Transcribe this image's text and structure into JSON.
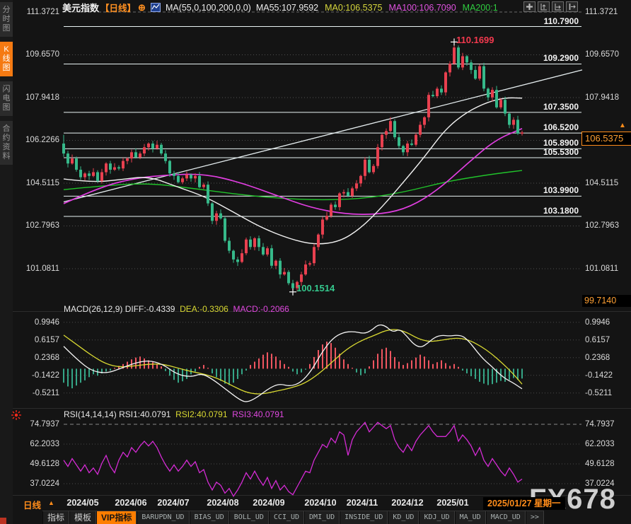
{
  "sidebar": {
    "items": [
      {
        "label": "分时图",
        "active": false
      },
      {
        "label": "K线图",
        "active": true
      },
      {
        "label": "闪电图",
        "active": false
      },
      {
        "label": "合约资料",
        "active": false
      }
    ]
  },
  "header": {
    "symbol": "美元指数",
    "period_tag": "【日线】",
    "add_icon": "⊕",
    "ma_settings": "MA(55,0,100,200,0,0)",
    "ma_values": [
      {
        "text": "MA55:107.9592",
        "color": "#ececec"
      },
      {
        "text": "MA0:106.5375",
        "color": "#d6d63c"
      },
      {
        "text": "MA100:106.7090",
        "color": "#e052e0"
      },
      {
        "text": "MA200:1",
        "color": "#2fcc3f"
      }
    ]
  },
  "watermark": "FX678",
  "bottom": {
    "period_label": "日线",
    "period_arrow": "▲",
    "dates": [
      "2024/05",
      "2024/06",
      "2024/07",
      "2024/08",
      "2024/09",
      "2024/10",
      "2024/11",
      "2024/12",
      "2025/01"
    ],
    "current_date": "2025/01/27 星期一",
    "tabs": [
      {
        "label": "指标",
        "style": "cjk"
      },
      {
        "label": "模板",
        "style": "cjk"
      },
      {
        "label": "VIP指标",
        "style": "vip"
      },
      {
        "label": "BARUPDN_UD",
        "style": "mono"
      },
      {
        "label": "BIAS_UD",
        "style": "mono"
      },
      {
        "label": "BOLL_UD",
        "style": "mono"
      },
      {
        "label": "CCI_UD",
        "style": "mono"
      },
      {
        "label": "DMI_UD",
        "style": "mono"
      },
      {
        "label": "INSIDE_UD",
        "style": "mono"
      },
      {
        "label": "KD_UD",
        "style": "mono"
      },
      {
        "label": "KDJ_UD",
        "style": "mono"
      },
      {
        "label": "MA_UD",
        "style": "mono"
      },
      {
        "label": "MACD_UD",
        "style": "mono"
      },
      {
        "label": ">>",
        "style": "mono"
      }
    ]
  },
  "chart_data": {
    "type": "bar",
    "subtype": "candlestick-with-macd-rsi",
    "title": "美元指数 日线",
    "main": {
      "axis_labels": [
        "111.3721",
        "109.6570",
        "107.9418",
        "106.2266",
        "104.5115",
        "102.7963",
        "101.0811"
      ],
      "levels": [
        "110.7900",
        "109.2900",
        "107.3500",
        "106.5200",
        "105.8900",
        "105.5300",
        "103.9900",
        "103.1800"
      ],
      "current_price": "106.5375",
      "session_low_label": "99.7140",
      "high_annotation": "110.1699",
      "low_annotation": "100.1514",
      "first_open": 106.1,
      "closes": [
        105.7,
        105.3,
        105.5,
        105.05,
        104.75,
        104.9,
        104.8,
        104.95,
        104.6,
        104.95,
        105.3,
        105.05,
        105.15,
        105.1,
        105.4,
        105.5,
        105.75,
        105.55,
        105.7,
        105.95,
        106.1,
        105.9,
        106.05,
        105.7,
        105.4,
        104.9,
        104.8,
        104.55,
        104.7,
        104.85,
        104.7,
        104.8,
        104.35,
        104.45,
        103.7,
        103.0,
        103.3,
        103.1,
        102.2,
        101.8,
        101.45,
        101.35,
        101.7,
        102.25,
        101.95,
        102.3,
        101.95,
        101.65,
        101.9,
        101.2,
        101.4,
        100.85,
        100.95,
        100.5,
        100.3,
        100.55,
        100.85,
        101.25,
        101.3,
        101.95,
        102.45,
        103.05,
        103.2,
        103.65,
        103.55,
        104.1,
        104.15,
        104.0,
        104.3,
        104.5,
        104.8,
        105.45,
        104.95,
        105.2,
        105.95,
        106.45,
        106.6,
        107.0,
        106.35,
        106.0,
        105.75,
        106.1,
        106.05,
        106.45,
        106.85,
        107.15,
        108.05,
        108.0,
        108.3,
        108.15,
        108.95,
        109.3,
        109.95,
        109.15,
        109.6,
        109.35,
        109.05,
        108.7,
        109.2,
        108.3,
        107.95,
        108.25,
        107.55,
        107.85,
        107.3,
        106.85,
        107.05,
        106.5,
        106.54
      ],
      "special": {
        "high_index": 92,
        "high_value": 110.1699,
        "low_index": 54,
        "low_value": 100.1514,
        "first_high": 106.45
      },
      "ma55": [
        [
          90,
          104.68
        ],
        [
          130,
          104.54
        ],
        [
          170,
          104.65
        ],
        [
          210,
          104.79
        ],
        [
          250,
          104.37
        ],
        [
          290,
          103.97
        ],
        [
          330,
          103.35
        ],
        [
          370,
          102.72
        ],
        [
          410,
          102.27
        ],
        [
          445,
          102.04
        ],
        [
          480,
          102.16
        ],
        [
          510,
          102.7
        ],
        [
          540,
          103.55
        ],
        [
          570,
          104.54
        ],
        [
          600,
          105.56
        ],
        [
          630,
          106.69
        ],
        [
          660,
          107.37
        ],
        [
          690,
          107.77
        ],
        [
          715,
          107.94
        ],
        [
          738,
          107.92
        ]
      ],
      "ma100": [
        [
          90,
          103.69
        ],
        [
          140,
          104.34
        ],
        [
          190,
          104.71
        ],
        [
          240,
          104.85
        ],
        [
          290,
          104.88
        ],
        [
          340,
          104.54
        ],
        [
          390,
          104.03
        ],
        [
          440,
          103.52
        ],
        [
          490,
          103.26
        ],
        [
          540,
          103.26
        ],
        [
          580,
          103.55
        ],
        [
          620,
          104.26
        ],
        [
          660,
          105.28
        ],
        [
          700,
          106.24
        ],
        [
          738,
          106.7
        ]
      ],
      "ma200": [
        [
          90,
          104.25
        ],
        [
          150,
          104.42
        ],
        [
          210,
          104.51
        ],
        [
          270,
          104.31
        ],
        [
          330,
          104.08
        ],
        [
          390,
          103.91
        ],
        [
          450,
          103.83
        ],
        [
          510,
          103.88
        ],
        [
          570,
          104.14
        ],
        [
          630,
          104.57
        ],
        [
          690,
          104.85
        ],
        [
          738,
          105.02
        ]
      ],
      "trendline": [
        [
          90,
          103.76
        ],
        [
          823,
          109.05
        ]
      ]
    },
    "macd": {
      "label": "MACD(26,12,9)",
      "diff_label": "DIFF:-0.4339",
      "dea_label": "DEA:-0.3306",
      "macd_label": "MACD:-0.2066",
      "axis_labels": [
        "0.9946",
        "0.6157",
        "0.2368",
        "-0.1422",
        "-0.5211"
      ],
      "hist": [
        -0.3,
        -0.38,
        -0.42,
        -0.36,
        -0.3,
        -0.25,
        -0.18,
        -0.12,
        -0.15,
        -0.1,
        -0.06,
        -0.04,
        0.02,
        0.06,
        0.1,
        0.15,
        0.2,
        0.24,
        0.26,
        0.22,
        0.18,
        0.14,
        0.1,
        0.05,
        -0.05,
        -0.15,
        -0.24,
        -0.3,
        -0.27,
        -0.22,
        -0.12,
        -0.06,
        0.04,
        0.08,
        0.02,
        -0.1,
        -0.18,
        -0.26,
        -0.32,
        -0.35,
        -0.3,
        -0.22,
        -0.12,
        -0.04,
        0.08,
        0.15,
        0.22,
        0.3,
        0.35,
        0.32,
        0.26,
        0.18,
        0.1,
        0.04,
        -0.06,
        -0.12,
        -0.08,
        -0.02,
        0.1,
        0.25,
        0.4,
        0.52,
        0.58,
        0.55,
        0.45,
        0.32,
        0.2,
        0.1,
        0.02,
        -0.08,
        -0.14,
        -0.1,
        0.05,
        0.18,
        0.32,
        0.42,
        0.45,
        0.38,
        0.25,
        0.15,
        0.08,
        0.12,
        0.18,
        0.24,
        0.3,
        0.26,
        0.18,
        0.1,
        0.14,
        0.18,
        0.12,
        0.06,
        0.1,
        0.04,
        -0.04,
        -0.1,
        -0.16,
        -0.22,
        -0.28,
        -0.32,
        -0.35,
        -0.33,
        -0.3,
        -0.26,
        -0.28,
        -0.24,
        -0.2,
        -0.24,
        -0.21
      ],
      "diff": [
        [
          90,
          0.48
        ],
        [
          110,
          0.18
        ],
        [
          130,
          -0.05
        ],
        [
          150,
          -0.1
        ],
        [
          170,
          0.0
        ],
        [
          190,
          0.12
        ],
        [
          210,
          0.18
        ],
        [
          230,
          0.1
        ],
        [
          250,
          -0.12
        ],
        [
          270,
          -0.18
        ],
        [
          285,
          -0.1
        ],
        [
          300,
          -0.22
        ],
        [
          320,
          -0.45
        ],
        [
          340,
          -0.68
        ],
        [
          350,
          -0.72
        ],
        [
          365,
          -0.6
        ],
        [
          380,
          -0.42
        ],
        [
          395,
          -0.32
        ],
        [
          410,
          -0.38
        ],
        [
          425,
          -0.3
        ],
        [
          440,
          -0.05
        ],
        [
          455,
          0.35
        ],
        [
          470,
          0.65
        ],
        [
          485,
          0.78
        ],
        [
          500,
          0.8
        ],
        [
          515,
          0.75
        ],
        [
          525,
          0.82
        ],
        [
          535,
          0.95
        ],
        [
          545,
          0.92
        ],
        [
          555,
          0.78
        ],
        [
          565,
          0.85
        ],
        [
          575,
          0.7
        ],
        [
          585,
          0.52
        ],
        [
          595,
          0.45
        ],
        [
          605,
          0.55
        ],
        [
          615,
          0.68
        ],
        [
          625,
          0.72
        ],
        [
          635,
          0.7
        ],
        [
          645,
          0.72
        ],
        [
          655,
          0.7
        ],
        [
          665,
          0.55
        ],
        [
          675,
          0.35
        ],
        [
          685,
          0.18
        ],
        [
          695,
          0.05
        ],
        [
          705,
          -0.1
        ],
        [
          715,
          -0.22
        ],
        [
          725,
          -0.3
        ],
        [
          738,
          -0.43
        ]
      ],
      "dea": [
        [
          90,
          0.72
        ],
        [
          110,
          0.5
        ],
        [
          130,
          0.28
        ],
        [
          150,
          0.1
        ],
        [
          170,
          0.03
        ],
        [
          190,
          0.06
        ],
        [
          210,
          0.1
        ],
        [
          230,
          0.1
        ],
        [
          250,
          0.02
        ],
        [
          270,
          -0.06
        ],
        [
          290,
          -0.12
        ],
        [
          310,
          -0.22
        ],
        [
          330,
          -0.38
        ],
        [
          350,
          -0.52
        ],
        [
          370,
          -0.55
        ],
        [
          390,
          -0.48
        ],
        [
          410,
          -0.42
        ],
        [
          430,
          -0.32
        ],
        [
          450,
          -0.12
        ],
        [
          470,
          0.15
        ],
        [
          490,
          0.42
        ],
        [
          510,
          0.6
        ],
        [
          530,
          0.72
        ],
        [
          545,
          0.82
        ],
        [
          560,
          0.85
        ],
        [
          575,
          0.78
        ],
        [
          590,
          0.65
        ],
        [
          605,
          0.58
        ],
        [
          620,
          0.6
        ],
        [
          635,
          0.64
        ],
        [
          650,
          0.66
        ],
        [
          665,
          0.6
        ],
        [
          680,
          0.48
        ],
        [
          695,
          0.32
        ],
        [
          710,
          0.12
        ],
        [
          725,
          -0.1
        ],
        [
          738,
          -0.33
        ]
      ]
    },
    "rsi": {
      "label": "RSI(14,14,14)",
      "rsi1_label": "RSI1:40.0791",
      "rsi2_label": "RSI2:40.0791",
      "rsi3_label": "RSI3:40.0791",
      "axis_labels": [
        "74.7937",
        "62.2033",
        "49.6128",
        "37.0224"
      ],
      "values": [
        52,
        48,
        53,
        49,
        45,
        49,
        44,
        47,
        43,
        50,
        55,
        48,
        44,
        52,
        57,
        54,
        60,
        57,
        61,
        64,
        61,
        64,
        60,
        54,
        49,
        45,
        49,
        45,
        48,
        52,
        48,
        51,
        44,
        46,
        38,
        33,
        38,
        36,
        31,
        34,
        29,
        33,
        38,
        44,
        40,
        45,
        40,
        36,
        41,
        34,
        39,
        33,
        36,
        32,
        30,
        35,
        40,
        45,
        44,
        52,
        57,
        62,
        60,
        66,
        63,
        70,
        68,
        55,
        65,
        70,
        73,
        76,
        70,
        73,
        76,
        74,
        72,
        74,
        65,
        60,
        57,
        62,
        58,
        64,
        68,
        71,
        74,
        70,
        67,
        67,
        67,
        70,
        74,
        64,
        68,
        65,
        61,
        55,
        60,
        52,
        48,
        53,
        49,
        45,
        42,
        47,
        43,
        38,
        40
      ]
    }
  }
}
